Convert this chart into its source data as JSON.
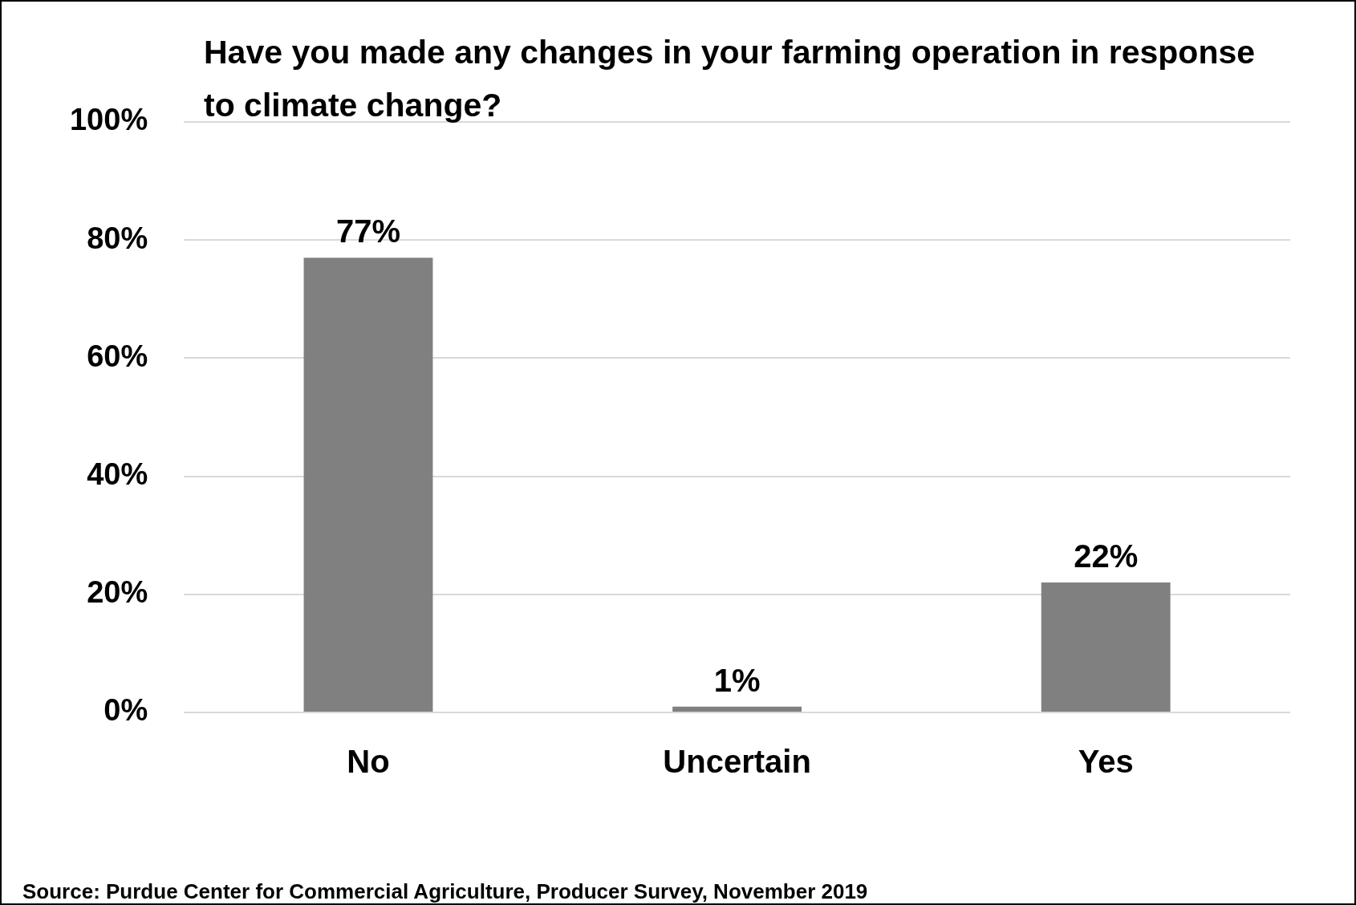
{
  "chart_data": {
    "type": "bar",
    "title": "Have you made any changes in your farming operation in response to climate change?",
    "categories": [
      "No",
      "Uncertain",
      "Yes"
    ],
    "values": [
      77,
      1,
      22
    ],
    "value_labels": [
      "77%",
      "1%",
      "22%"
    ],
    "color": "#808080",
    "ylim": [
      0,
      100
    ],
    "yticks": [
      {
        "value": 0,
        "label": "0%"
      },
      {
        "value": 20,
        "label": "20%"
      },
      {
        "value": 40,
        "label": "40%"
      },
      {
        "value": 60,
        "label": "60%"
      },
      {
        "value": 80,
        "label": "80%"
      },
      {
        "value": 100,
        "label": "100%"
      }
    ],
    "grid": "y",
    "legend": false,
    "annotations": [
      "Source: Purdue Center for Commercial Agriculture, Producer Survey, November 2019"
    ]
  }
}
